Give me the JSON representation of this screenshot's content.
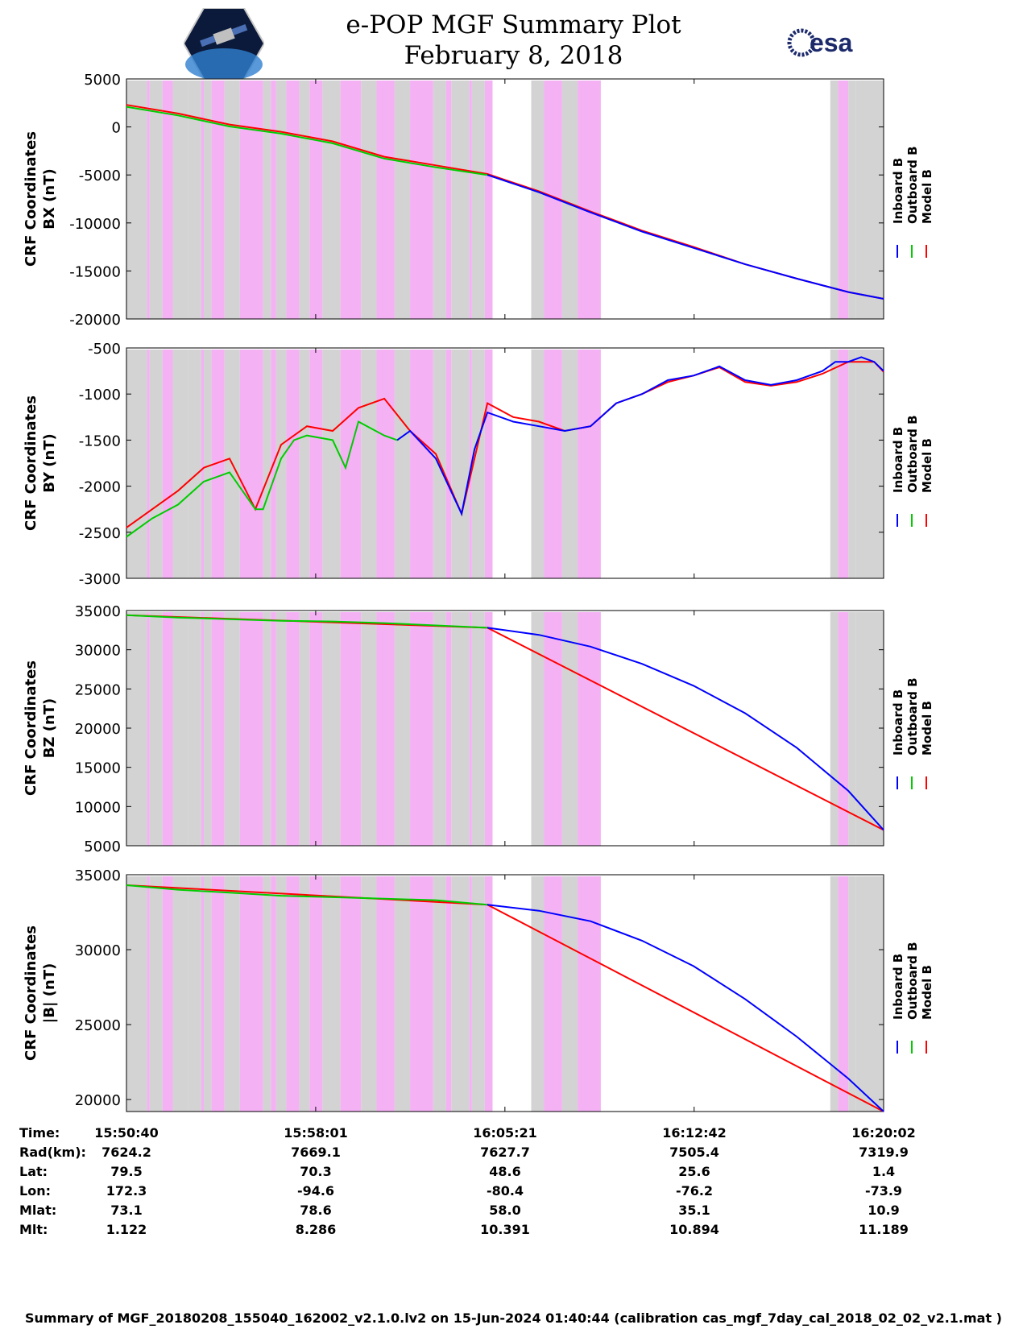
{
  "header": {
    "title_line1": "e-POP MGF Summary Plot",
    "title_line2": "February 8, 2018",
    "logo_left_name": "cassiope-mission-logo",
    "logo_right_text": "esa"
  },
  "colors": {
    "inboard": "#0000ff",
    "outboard": "#00cc00",
    "model": "#ff0000",
    "gray_band": "#d3d3d3",
    "pink_band": "#f4b2f4"
  },
  "legend": [
    "Inboard B",
    "Outboard B",
    "Model B"
  ],
  "chart_data": [
    {
      "type": "line",
      "title": "",
      "ylabel_line1": "CRF Coordinates",
      "ylabel_line2": "BX (nT)",
      "ylim": [
        -20000,
        5000
      ],
      "yticks": [
        5000,
        0,
        -5000,
        -10000,
        -15000,
        -20000
      ],
      "tick_labels": [
        "5000",
        "0",
        "-5000",
        "-10000",
        "-15000",
        "-20000"
      ],
      "x_minutes": [
        0,
        2,
        4,
        6,
        8,
        10,
        12,
        14,
        16,
        18,
        20,
        22,
        24,
        26,
        28,
        29.37
      ],
      "series": [
        {
          "name": "Outboard B",
          "x": [
            0,
            2,
            4,
            6,
            8,
            10,
            12,
            14
          ],
          "values": [
            2100,
            1200,
            50,
            -700,
            -1700,
            -3300,
            -4200,
            -5000
          ]
        },
        {
          "name": "Inboard B",
          "x": [
            14,
            16,
            18,
            20,
            22,
            24,
            26,
            28,
            29.37
          ],
          "values": [
            -5000,
            -6800,
            -8900,
            -10900,
            -12600,
            -14300,
            -15800,
            -17200,
            -17900
          ]
        },
        {
          "name": "Model B",
          "x": [
            0,
            2,
            4,
            6,
            8,
            10,
            12,
            14,
            16,
            18,
            20,
            22,
            24,
            26,
            28,
            29.37
          ],
          "values": [
            2300,
            1400,
            250,
            -500,
            -1500,
            -3100,
            -4000,
            -4900,
            -6700,
            -8800,
            -10800,
            -12500,
            -14300,
            -15800,
            -17200,
            -17900
          ]
        }
      ]
    },
    {
      "type": "line",
      "ylabel_line1": "CRF Coordinates",
      "ylabel_line2": "BY (nT)",
      "ylim": [
        -3000,
        -500
      ],
      "yticks": [
        -500,
        -1000,
        -1500,
        -2000,
        -2500,
        -3000
      ],
      "tick_labels": [
        "-500",
        "-1000",
        "-1500",
        "-2000",
        "-2500",
        "-3000"
      ],
      "series": [
        {
          "name": "Outboard B",
          "x": [
            0,
            1,
            2,
            3,
            4,
            5,
            5.3,
            6,
            6.5,
            7,
            8,
            8.5,
            9,
            10,
            10.5
          ],
          "values": [
            -2550,
            -2350,
            -2200,
            -1950,
            -1850,
            -2250,
            -2250,
            -1700,
            -1500,
            -1450,
            -1500,
            -1800,
            -1300,
            -1450,
            -1500
          ]
        },
        {
          "name": "Inboard B",
          "x": [
            10.5,
            11,
            12,
            13,
            13.5,
            14,
            15,
            16,
            17,
            18,
            19,
            20,
            21,
            22,
            23,
            24,
            25,
            26,
            27,
            27.5,
            28,
            28.5,
            29,
            29.37
          ],
          "values": [
            -1500,
            -1400,
            -1700,
            -2300,
            -1600,
            -1200,
            -1300,
            -1350,
            -1400,
            -1350,
            -1100,
            -1000,
            -850,
            -800,
            -700,
            -850,
            -900,
            -850,
            -750,
            -650,
            -650,
            -600,
            -650,
            -750
          ]
        },
        {
          "name": "Model B",
          "x": [
            0,
            1,
            2,
            3,
            4,
            5,
            6,
            7,
            8,
            9,
            10,
            11,
            12,
            13,
            14,
            15,
            16,
            17,
            18,
            19,
            20,
            21,
            22,
            23,
            24,
            25,
            26,
            27,
            28,
            29,
            29.37
          ],
          "values": [
            -2450,
            -2250,
            -2050,
            -1800,
            -1700,
            -2250,
            -1550,
            -1350,
            -1400,
            -1150,
            -1050,
            -1400,
            -1650,
            -2300,
            -1100,
            -1250,
            -1300,
            -1400,
            -1350,
            -1100,
            -1000,
            -870,
            -800,
            -710,
            -870,
            -910,
            -870,
            -780,
            -650,
            -650,
            -760
          ]
        }
      ]
    },
    {
      "type": "line",
      "ylabel_line1": "CRF Coordinates",
      "ylabel_line2": "BZ (nT)",
      "ylim": [
        5000,
        35000
      ],
      "yticks": [
        35000,
        30000,
        25000,
        20000,
        15000,
        10000,
        5000
      ],
      "tick_labels": [
        "35000",
        "30000",
        "25000",
        "20000",
        "15000",
        "10000",
        "5000"
      ],
      "series": [
        {
          "name": "Outboard B",
          "x": [
            0,
            2,
            4,
            6,
            8,
            10,
            12,
            14
          ],
          "values": [
            34400,
            34100,
            33900,
            33700,
            33600,
            33400,
            33100,
            32800
          ]
        },
        {
          "name": "Inboard B",
          "x": [
            14,
            16,
            18,
            20,
            22,
            24,
            26,
            28,
            29.37
          ],
          "values": [
            32800,
            31900,
            30400,
            28200,
            25400,
            21900,
            17500,
            12000,
            7000
          ]
        },
        {
          "name": "Model B",
          "x": [
            0,
            14,
            29.37
          ],
          "values": [
            34400,
            32800,
            7000
          ]
        }
      ]
    },
    {
      "type": "line",
      "ylabel_line1": "CRF Coordinates",
      "ylabel_line2": "|B| (nT)",
      "ylim": [
        19200,
        35000
      ],
      "yticks": [
        35000,
        30000,
        25000,
        20000
      ],
      "tick_labels": [
        "35000",
        "30000",
        "25000",
        "20000"
      ],
      "series": [
        {
          "name": "Outboard B",
          "x": [
            0,
            2,
            4,
            6,
            8,
            10,
            12,
            14
          ],
          "values": [
            34300,
            34000,
            33800,
            33600,
            33500,
            33400,
            33300,
            33000
          ]
        },
        {
          "name": "Inboard B",
          "x": [
            14,
            16,
            18,
            20,
            22,
            24,
            26,
            28,
            29.37
          ],
          "values": [
            33000,
            32600,
            31900,
            30600,
            28900,
            26700,
            24200,
            21400,
            19200
          ]
        },
        {
          "name": "Model B",
          "x": [
            0,
            14,
            29.37
          ],
          "values": [
            34300,
            33000,
            19200
          ]
        }
      ]
    }
  ],
  "bands": {
    "gray": [
      [
        0,
        0.8
      ],
      [
        0.9,
        1.4
      ],
      [
        1.8,
        2.4
      ],
      [
        2.4,
        2.9
      ],
      [
        3.0,
        3.3
      ],
      [
        3.8,
        4.4
      ],
      [
        5.3,
        5.6
      ],
      [
        5.8,
        6.2
      ],
      [
        6.7,
        7.1
      ],
      [
        7.6,
        8.3
      ],
      [
        9.1,
        9.7
      ],
      [
        10.4,
        11.0
      ],
      [
        11.9,
        12.4
      ],
      [
        12.6,
        13.3
      ],
      [
        13.4,
        13.9
      ],
      [
        15.7,
        16.2
      ],
      [
        16.9,
        17.5
      ],
      [
        27.3,
        27.6
      ],
      [
        28.0,
        28.3
      ],
      [
        28.3,
        29.37
      ]
    ],
    "pink": [
      [
        0.8,
        0.9
      ],
      [
        1.4,
        1.8
      ],
      [
        2.9,
        3.0
      ],
      [
        3.3,
        3.8
      ],
      [
        4.4,
        5.3
      ],
      [
        5.6,
        5.8
      ],
      [
        6.2,
        6.7
      ],
      [
        7.1,
        7.6
      ],
      [
        8.3,
        9.1
      ],
      [
        9.7,
        10.4
      ],
      [
        11.0,
        11.9
      ],
      [
        12.4,
        12.6
      ],
      [
        13.3,
        13.4
      ],
      [
        13.9,
        14.2
      ],
      [
        16.2,
        16.9
      ],
      [
        17.5,
        18.4
      ],
      [
        27.6,
        28.0
      ]
    ]
  },
  "info_table": {
    "row_labels": [
      "Time:",
      "Rad(km):",
      "Lat:",
      "Lon:",
      "Mlat:",
      "Mlt:"
    ],
    "columns": [
      {
        "time": "15:50:40",
        "rad": "7624.2",
        "lat": "79.5",
        "lon": "172.3",
        "mlat": "73.1",
        "mlt": "1.122"
      },
      {
        "time": "15:58:01",
        "rad": "7669.1",
        "lat": "70.3",
        "lon": "-94.6",
        "mlat": "78.6",
        "mlt": "8.286"
      },
      {
        "time": "16:05:21",
        "rad": "7627.7",
        "lat": "48.6",
        "lon": "-80.4",
        "mlat": "58.0",
        "mlt": "10.391"
      },
      {
        "time": "16:12:42",
        "rad": "7505.4",
        "lat": "25.6",
        "lon": "-76.2",
        "mlat": "35.1",
        "mlt": "10.894"
      },
      {
        "time": "16:20:02",
        "rad": "7319.9",
        "lat": "1.4",
        "lon": "-73.9",
        "mlat": "10.9",
        "mlt": "11.189"
      }
    ]
  },
  "footer": "Summary of MGF_20180208_155040_162002_v2.1.0.lv2 on 15-Jun-2024 01:40:44 (calibration cas_mgf_7day_cal_2018_02_02_v2.1.mat )"
}
